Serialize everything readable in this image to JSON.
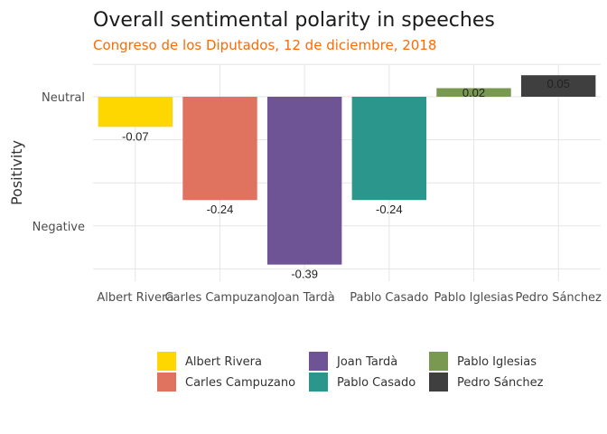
{
  "chart_data": {
    "type": "bar",
    "title": "Overall sentimental polarity in speeches",
    "subtitle": "Congreso de los Diputados, 12 de diciembre, 2018",
    "ylabel": "Positivity",
    "xlabel": "",
    "categories": [
      "Albert Rivera",
      "Carles Campuzano",
      "Joan Tardà",
      "Pablo Casado",
      "Pablo Iglesias",
      "Pedro Sánchez"
    ],
    "values": [
      -0.07,
      -0.24,
      -0.39,
      -0.24,
      0.02,
      0.05
    ],
    "data_labels": [
      "-0.07",
      "-0.24",
      "-0.39",
      "-0.24",
      "0.02",
      "0.05"
    ],
    "colors": [
      "#FFD700",
      "#E07360",
      "#6E5494",
      "#2A968C",
      "#78994F",
      "#3F3F3F"
    ],
    "y_ticks": [
      {
        "value": 0,
        "label": "Neutral"
      },
      {
        "value": -0.3,
        "label": "Negative"
      }
    ],
    "ylim": [
      -0.4,
      0.06
    ],
    "grid": true,
    "legend": {
      "placement": "bottom",
      "entries": [
        "Albert Rivera",
        "Carles Campuzano",
        "Joan Tardà",
        "Pablo Casado",
        "Pablo Iglesias",
        "Pedro Sánchez"
      ]
    },
    "subtitle_color": "#FF6A00"
  }
}
